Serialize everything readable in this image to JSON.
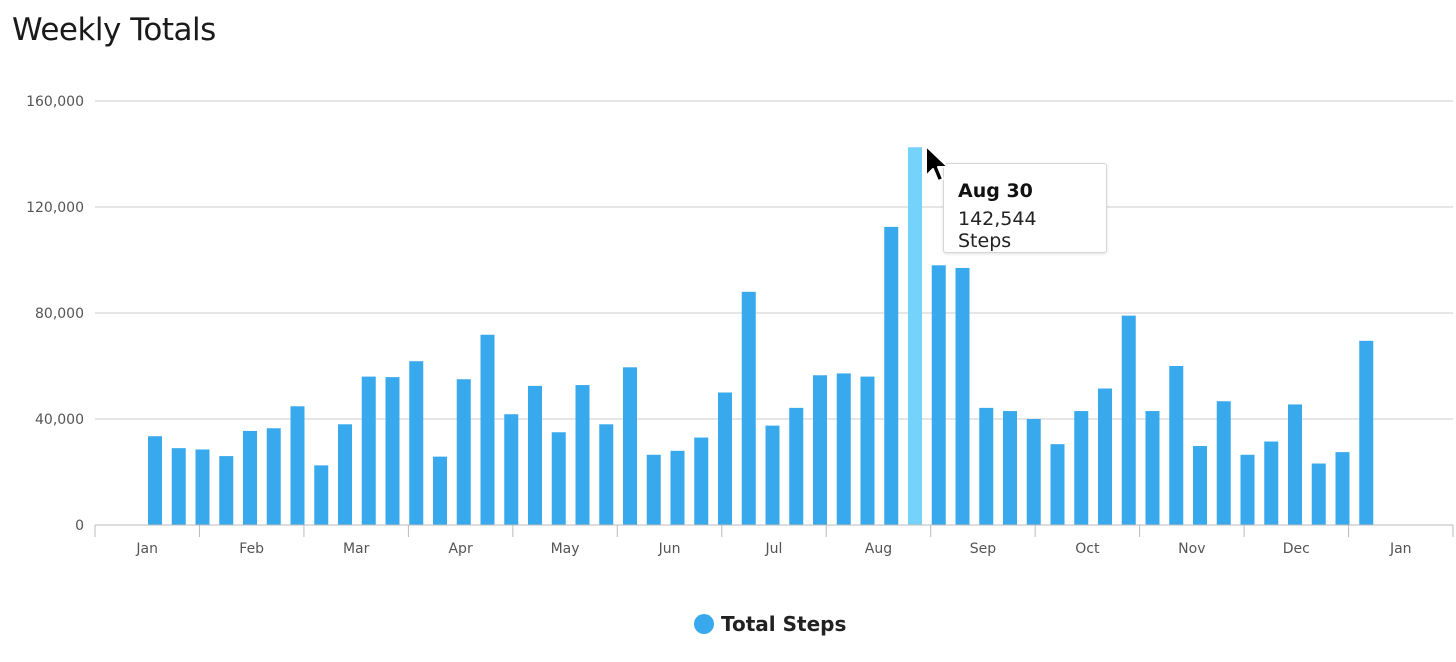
{
  "title": "Weekly Totals",
  "legend": {
    "label": "Total Steps",
    "color": "#38a9ec"
  },
  "tooltip": {
    "date": "Aug 30",
    "value": "142,544 Steps"
  },
  "colors": {
    "bar": "#38a9ec",
    "bar_highlight": "#74d2fb",
    "grid": "#cccccc",
    "axis": "#bbbbbb"
  },
  "cursor_icon": "mouse-pointer-icon",
  "chart_data": {
    "type": "bar",
    "title": "Weekly Totals",
    "xlabel": "",
    "ylabel": "",
    "ylim": [
      0,
      160000
    ],
    "y_ticks": [
      0,
      40000,
      80000,
      120000,
      160000
    ],
    "y_tick_labels": [
      "0",
      "40,000",
      "80,000",
      "120,000",
      "160,000"
    ],
    "x_tick_labels": [
      "Jan",
      "Feb",
      "Mar",
      "Apr",
      "May",
      "Jun",
      "Jul",
      "Aug",
      "Sep",
      "Oct",
      "Nov",
      "Dec",
      "Jan"
    ],
    "grid": true,
    "legend_position": "bottom-center",
    "highlighted_index": 32,
    "series": [
      {
        "name": "Total Steps",
        "values": [
          33500,
          29000,
          28500,
          26000,
          35500,
          36500,
          44800,
          22500,
          38000,
          56000,
          55800,
          61800,
          25800,
          55000,
          71800,
          41800,
          52500,
          35000,
          52800,
          38000,
          59500,
          26500,
          28000,
          33000,
          50000,
          88000,
          37500,
          44200,
          56500,
          57200,
          56000,
          112500,
          142544,
          98000,
          97000,
          44200,
          43000,
          40000,
          30500,
          43000,
          51500,
          79000,
          43000,
          60000,
          29800,
          46700,
          26500,
          31500,
          45500,
          23200,
          27500,
          69500
        ]
      }
    ]
  }
}
